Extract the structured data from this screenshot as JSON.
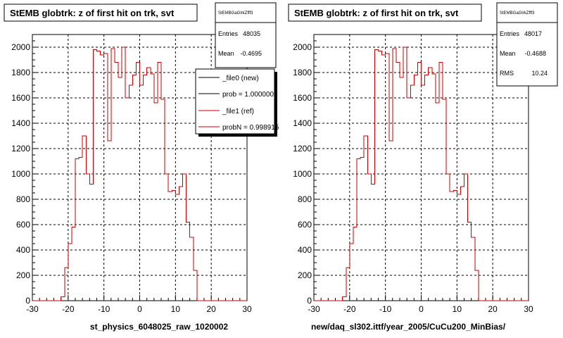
{
  "panels": [
    {
      "title": "StEMB globtrk: z of first hit on trk, svt",
      "xlabel": "st_physics_6048025_raw_1020002",
      "stats": {
        "name": "StEMBGaGlrkZfff3",
        "rows": [
          {
            "label": "Entries",
            "value": "48035"
          },
          {
            "label": "Mean",
            "value": "-0.4695"
          }
        ]
      },
      "legend": [
        {
          "label": "_file0 (new)",
          "color": "#000000"
        },
        {
          "label": "prob = 1.000000",
          "color": "#000000"
        },
        {
          "label": "_file1 (ref)",
          "color": "#cc0000"
        },
        {
          "label": "probN = 0.998915",
          "color": "#cc0000"
        }
      ]
    },
    {
      "title": "StEMB globtrk: z of first hit on trk, svt",
      "xlabel": "new/daq_sl302.ittf/year_2005/CuCu200_MinBias/",
      "stats": {
        "name": "StEMBGaGlrkZfff3",
        "rows": [
          {
            "label": "Entries",
            "value": "48017"
          },
          {
            "label": "Mean",
            "value": "-0.4688"
          },
          {
            "label": "RMS",
            "value": "10.24"
          }
        ]
      },
      "legend": []
    }
  ],
  "chart_data": [
    {
      "type": "histogram",
      "title": "StEMB globtrk: z of first hit on trk, svt",
      "xlabel": "st_physics_6048025_raw_1020002",
      "xlim": [
        -30,
        30
      ],
      "ylim": [
        0,
        2100
      ],
      "xticks": [
        -30,
        -20,
        -10,
        0,
        10,
        20,
        30
      ],
      "yticks": [
        0,
        200,
        400,
        600,
        800,
        1000,
        1200,
        1400,
        1600,
        1800,
        2000
      ],
      "grid": true,
      "bin_edges": [
        -30,
        -29,
        -28,
        -27,
        -26,
        -25,
        -24,
        -23,
        -22,
        -21,
        -20,
        -19,
        -18,
        -17,
        -16,
        -15,
        -14,
        -13,
        -12,
        -11,
        -10,
        -9,
        -8,
        -7,
        -6,
        -5,
        -4,
        -3,
        -2,
        -1,
        0,
        1,
        2,
        3,
        4,
        5,
        6,
        7,
        8,
        9,
        10,
        11,
        12,
        13,
        14,
        15,
        16,
        17,
        18,
        19,
        20,
        21,
        22,
        23,
        24,
        25,
        26,
        27,
        28,
        29,
        30
      ],
      "series": [
        {
          "name": "_file0 (new)",
          "color": "#000000",
          "values": [
            0,
            0,
            0,
            0,
            0,
            0,
            0,
            0,
            30,
            260,
            450,
            580,
            1120,
            1130,
            1300,
            1000,
            920,
            1980,
            1970,
            1940,
            1950,
            1260,
            1990,
            1880,
            1760,
            2000,
            1600,
            1700,
            1780,
            1880,
            1700,
            1780,
            1840,
            1790,
            1560,
            1880,
            1590,
            1000,
            860,
            870,
            840,
            900,
            1000,
            620,
            500,
            240,
            0,
            0,
            0,
            0,
            0,
            0,
            0,
            0,
            0,
            0,
            0,
            0,
            0,
            0
          ]
        },
        {
          "name": "_file1 (ref)",
          "color": "#cc0000",
          "values": [
            0,
            0,
            0,
            0,
            0,
            0,
            0,
            0,
            30,
            260,
            450,
            580,
            1120,
            1130,
            1300,
            1000,
            920,
            1980,
            1970,
            1940,
            1950,
            1260,
            1990,
            1880,
            1760,
            2000,
            1600,
            1700,
            1780,
            1880,
            1700,
            1780,
            1840,
            1790,
            1560,
            1880,
            1590,
            1000,
            860,
            870,
            840,
            900,
            1000,
            620,
            500,
            240,
            0,
            0,
            0,
            0,
            0,
            0,
            0,
            0,
            0,
            0,
            0,
            0,
            0,
            0
          ]
        }
      ]
    },
    {
      "type": "histogram",
      "title": "StEMB globtrk: z of first hit on trk, svt",
      "xlabel": "new/daq_sl302.ittf/year_2005/CuCu200_MinBias/",
      "xlim": [
        -30,
        30
      ],
      "ylim": [
        0,
        2100
      ],
      "xticks": [
        -30,
        -20,
        -10,
        0,
        10,
        20,
        30
      ],
      "yticks": [
        0,
        200,
        400,
        600,
        800,
        1000,
        1200,
        1400,
        1600,
        1800,
        2000
      ],
      "grid": true,
      "bin_edges": [
        -30,
        -29,
        -28,
        -27,
        -26,
        -25,
        -24,
        -23,
        -22,
        -21,
        -20,
        -19,
        -18,
        -17,
        -16,
        -15,
        -14,
        -13,
        -12,
        -11,
        -10,
        -9,
        -8,
        -7,
        -6,
        -5,
        -4,
        -3,
        -2,
        -1,
        0,
        1,
        2,
        3,
        4,
        5,
        6,
        7,
        8,
        9,
        10,
        11,
        12,
        13,
        14,
        15,
        16,
        17,
        18,
        19,
        20,
        21,
        22,
        23,
        24,
        25,
        26,
        27,
        28,
        29,
        30
      ],
      "series": [
        {
          "name": "",
          "color": "#cc0000",
          "values": [
            0,
            0,
            0,
            0,
            0,
            0,
            0,
            0,
            30,
            260,
            450,
            580,
            1120,
            1130,
            1300,
            1000,
            920,
            1980,
            1970,
            1940,
            1950,
            1260,
            1990,
            1880,
            1760,
            2000,
            1600,
            1700,
            1780,
            1880,
            1700,
            1780,
            1840,
            1790,
            1560,
            1880,
            1590,
            1000,
            860,
            870,
            840,
            900,
            1000,
            620,
            500,
            240,
            0,
            0,
            0,
            0,
            0,
            0,
            0,
            0,
            0,
            0,
            0,
            0,
            0,
            0
          ]
        }
      ]
    }
  ]
}
